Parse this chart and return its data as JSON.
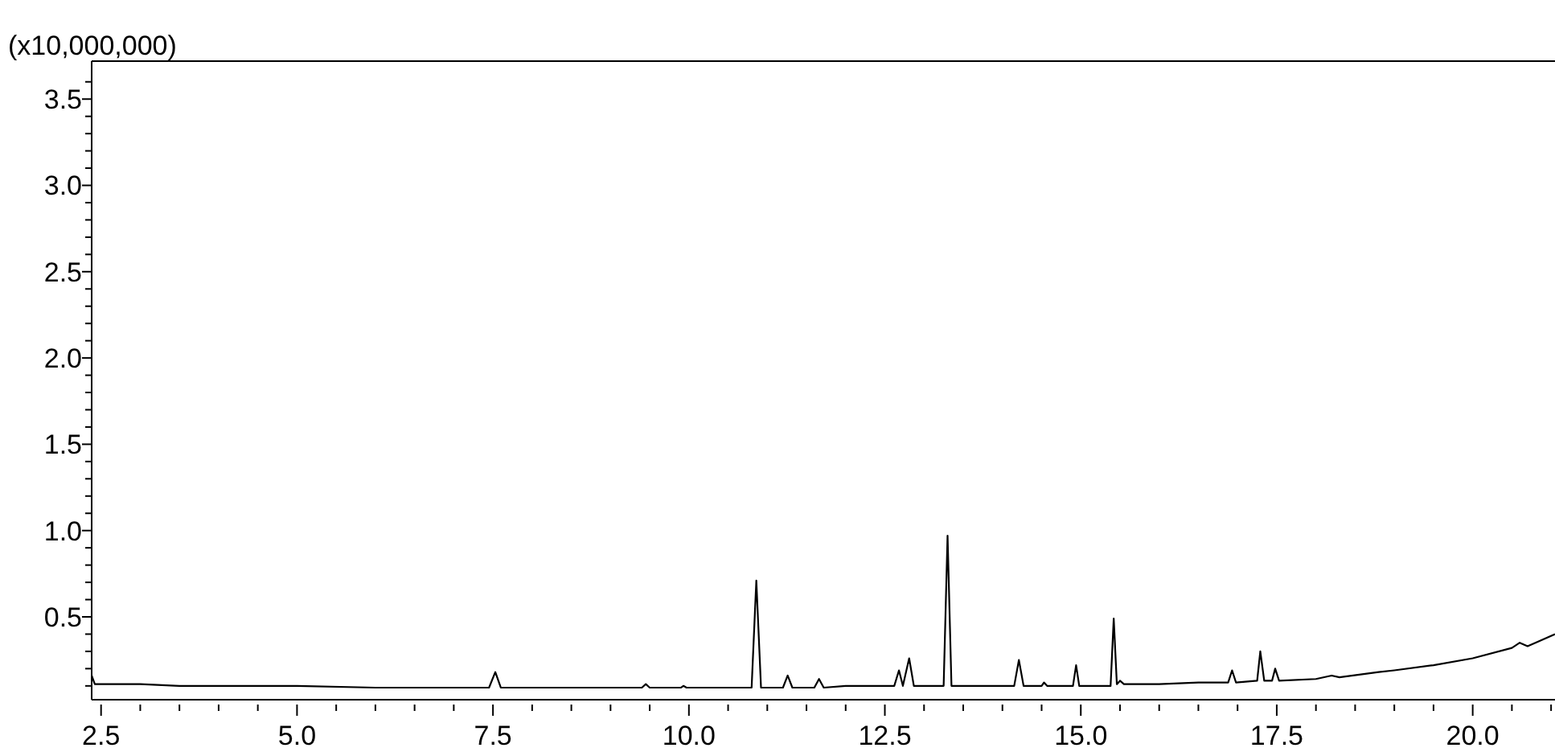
{
  "chart_data": {
    "type": "line",
    "ylabel": "(x10,000,000)",
    "xlim": [
      2.38,
      21.05
    ],
    "ylim": [
      0.02,
      3.72
    ],
    "xticks": [
      {
        "value": 2.5,
        "label": "2.5"
      },
      {
        "value": 3.0,
        "label": null
      },
      {
        "value": 3.5,
        "label": null
      },
      {
        "value": 4.0,
        "label": null
      },
      {
        "value": 4.5,
        "label": null
      },
      {
        "value": 5.0,
        "label": "5.0"
      },
      {
        "value": 5.5,
        "label": null
      },
      {
        "value": 6.0,
        "label": null
      },
      {
        "value": 6.5,
        "label": null
      },
      {
        "value": 7.0,
        "label": null
      },
      {
        "value": 7.5,
        "label": "7.5"
      },
      {
        "value": 8.0,
        "label": null
      },
      {
        "value": 8.5,
        "label": null
      },
      {
        "value": 9.0,
        "label": null
      },
      {
        "value": 9.5,
        "label": null
      },
      {
        "value": 10.0,
        "label": "10.0"
      },
      {
        "value": 10.5,
        "label": null
      },
      {
        "value": 11.0,
        "label": null
      },
      {
        "value": 11.5,
        "label": null
      },
      {
        "value": 12.0,
        "label": null
      },
      {
        "value": 12.5,
        "label": "12.5"
      },
      {
        "value": 13.0,
        "label": null
      },
      {
        "value": 13.5,
        "label": null
      },
      {
        "value": 14.0,
        "label": null
      },
      {
        "value": 14.5,
        "label": null
      },
      {
        "value": 15.0,
        "label": "15.0"
      },
      {
        "value": 15.5,
        "label": null
      },
      {
        "value": 16.0,
        "label": null
      },
      {
        "value": 16.5,
        "label": null
      },
      {
        "value": 17.0,
        "label": null
      },
      {
        "value": 17.5,
        "label": "17.5"
      },
      {
        "value": 18.0,
        "label": null
      },
      {
        "value": 18.5,
        "label": null
      },
      {
        "value": 19.0,
        "label": null
      },
      {
        "value": 19.5,
        "label": null
      },
      {
        "value": 20.0,
        "label": "20.0"
      },
      {
        "value": 20.5,
        "label": null
      },
      {
        "value": 21.0,
        "label": null
      }
    ],
    "yticks": [
      {
        "value": 0.1,
        "label": null
      },
      {
        "value": 0.2,
        "label": null
      },
      {
        "value": 0.3,
        "label": null
      },
      {
        "value": 0.4,
        "label": null
      },
      {
        "value": 0.5,
        "label": "0.5"
      },
      {
        "value": 0.6,
        "label": null
      },
      {
        "value": 0.7,
        "label": null
      },
      {
        "value": 0.8,
        "label": null
      },
      {
        "value": 0.9,
        "label": null
      },
      {
        "value": 1.0,
        "label": "1.0"
      },
      {
        "value": 1.1,
        "label": null
      },
      {
        "value": 1.2,
        "label": null
      },
      {
        "value": 1.3,
        "label": null
      },
      {
        "value": 1.4,
        "label": null
      },
      {
        "value": 1.5,
        "label": "1.5"
      },
      {
        "value": 1.6,
        "label": null
      },
      {
        "value": 1.7,
        "label": null
      },
      {
        "value": 1.8,
        "label": null
      },
      {
        "value": 1.9,
        "label": null
      },
      {
        "value": 2.0,
        "label": "2.0"
      },
      {
        "value": 2.1,
        "label": null
      },
      {
        "value": 2.2,
        "label": null
      },
      {
        "value": 2.3,
        "label": null
      },
      {
        "value": 2.4,
        "label": null
      },
      {
        "value": 2.5,
        "label": "2.5"
      },
      {
        "value": 2.6,
        "label": null
      },
      {
        "value": 2.7,
        "label": null
      },
      {
        "value": 2.8,
        "label": null
      },
      {
        "value": 2.9,
        "label": null
      },
      {
        "value": 3.0,
        "label": "3.0"
      },
      {
        "value": 3.1,
        "label": null
      },
      {
        "value": 3.2,
        "label": null
      },
      {
        "value": 3.3,
        "label": null
      },
      {
        "value": 3.4,
        "label": null
      },
      {
        "value": 3.5,
        "label": "3.5"
      },
      {
        "value": 3.6,
        "label": null
      }
    ],
    "marker": "none",
    "series": [
      {
        "color": "#000000",
        "x": [
          2.38,
          2.42,
          3.0,
          3.5,
          4.0,
          5.0,
          6.0,
          7.0,
          7.45,
          7.53,
          7.6,
          8.5,
          9.4,
          9.45,
          9.5,
          9.9,
          9.93,
          9.97,
          10.8,
          10.86,
          10.92,
          11.2,
          11.26,
          11.32,
          11.6,
          11.66,
          11.72,
          12.0,
          12.3,
          12.62,
          12.68,
          12.73,
          12.81,
          12.87,
          13.25,
          13.3,
          13.35,
          14.15,
          14.21,
          14.27,
          14.5,
          14.53,
          14.57,
          14.9,
          14.94,
          14.98,
          15.38,
          15.42,
          15.46,
          15.5,
          15.55,
          16.0,
          16.5,
          16.88,
          16.93,
          16.98,
          17.25,
          17.29,
          17.34,
          17.44,
          17.48,
          17.53,
          18.0,
          18.2,
          18.3,
          18.8,
          19.0,
          19.5,
          20.0,
          20.5,
          20.6,
          20.7,
          20.8,
          21.05
        ],
        "values": [
          0.16,
          0.11,
          0.11,
          0.1,
          0.1,
          0.1,
          0.09,
          0.09,
          0.09,
          0.18,
          0.09,
          0.09,
          0.09,
          0.11,
          0.09,
          0.09,
          0.1,
          0.09,
          0.09,
          0.71,
          0.09,
          0.09,
          0.16,
          0.09,
          0.09,
          0.14,
          0.09,
          0.1,
          0.1,
          0.1,
          0.19,
          0.1,
          0.26,
          0.1,
          0.1,
          0.97,
          0.1,
          0.1,
          0.25,
          0.1,
          0.1,
          0.12,
          0.1,
          0.1,
          0.22,
          0.1,
          0.1,
          0.49,
          0.11,
          0.13,
          0.11,
          0.11,
          0.12,
          0.12,
          0.19,
          0.12,
          0.13,
          0.3,
          0.13,
          0.13,
          0.2,
          0.13,
          0.14,
          0.16,
          0.15,
          0.18,
          0.19,
          0.22,
          0.26,
          0.32,
          0.35,
          0.33,
          0.35,
          0.4
        ]
      }
    ]
  }
}
